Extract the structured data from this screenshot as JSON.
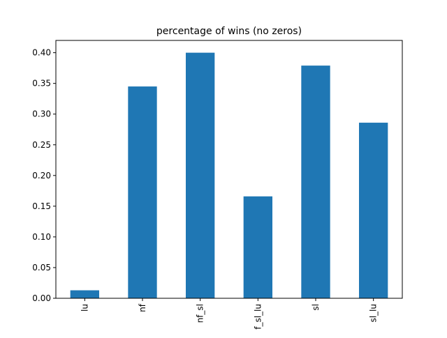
{
  "chart_data": {
    "type": "bar",
    "title": "percentage of wins (no zeros)",
    "xlabel": "",
    "ylabel": "",
    "categories": [
      "lu",
      "nf",
      "nf_sl",
      "f_sl_lu",
      "sl",
      "sl_lu"
    ],
    "values": [
      0.013,
      0.345,
      0.4,
      0.166,
      0.379,
      0.286
    ],
    "ylim": [
      0,
      0.42
    ],
    "yticks": [
      0.0,
      0.05,
      0.1,
      0.15,
      0.2,
      0.25,
      0.3,
      0.35,
      0.4
    ],
    "ytick_labels": [
      "0.00",
      "0.05",
      "0.10",
      "0.15",
      "0.20",
      "0.25",
      "0.30",
      "0.35",
      "0.40"
    ],
    "grid": false,
    "legend": "none",
    "bar_color": "#1f77b4"
  }
}
